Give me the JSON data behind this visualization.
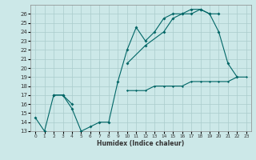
{
  "xlabel": "Humidex (Indice chaleur)",
  "bg_color": "#cce8e8",
  "line_color": "#006666",
  "grid_color": "#aacccc",
  "xlim": [
    -0.5,
    23.5
  ],
  "ylim": [
    13,
    27
  ],
  "yticks": [
    13,
    14,
    15,
    16,
    17,
    18,
    19,
    20,
    21,
    22,
    23,
    24,
    25,
    26
  ],
  "xticks": [
    0,
    1,
    2,
    3,
    4,
    5,
    6,
    7,
    8,
    9,
    10,
    11,
    12,
    13,
    14,
    15,
    16,
    17,
    18,
    19,
    20,
    21,
    22,
    23
  ],
  "series1_x": [
    0,
    1,
    2,
    3,
    4,
    5,
    6,
    7,
    8,
    9,
    10,
    11,
    12,
    13,
    14,
    15,
    16,
    17,
    18,
    19,
    20,
    21,
    22
  ],
  "series1_y": [
    14.5,
    13.0,
    17.0,
    17.0,
    15.5,
    13.0,
    13.5,
    14.0,
    14.0,
    18.5,
    22.0,
    24.5,
    23.0,
    24.0,
    25.5,
    26.0,
    26.0,
    26.5,
    26.5,
    26.0,
    24.0,
    20.5,
    19.0
  ],
  "series2_x": [
    2,
    3,
    4,
    10,
    12,
    14,
    15,
    16,
    17,
    18,
    19,
    20
  ],
  "series2_y": [
    17.0,
    17.0,
    16.0,
    20.5,
    22.5,
    24.0,
    25.5,
    26.0,
    26.0,
    26.5,
    26.0,
    26.0
  ],
  "series3_x": [
    10,
    11,
    12,
    13,
    14,
    15,
    16,
    17,
    18,
    19,
    20,
    21,
    22,
    23
  ],
  "series3_y": [
    17.5,
    17.5,
    17.5,
    18.0,
    18.0,
    18.0,
    18.0,
    18.5,
    18.5,
    18.5,
    18.5,
    18.5,
    19.0,
    19.0
  ]
}
